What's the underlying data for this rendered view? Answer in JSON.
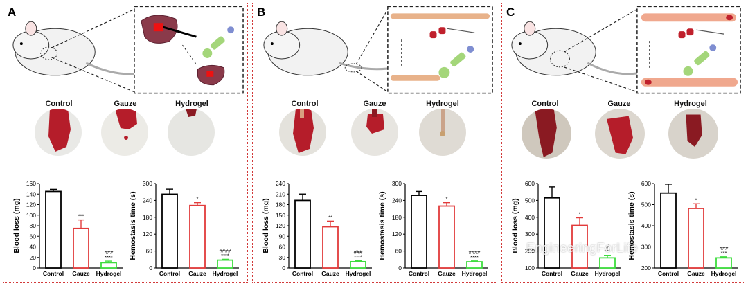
{
  "panels": [
    {
      "letter": "A",
      "photo_labels": [
        "Control",
        "Gauze",
        "Hydrogel"
      ],
      "charts": [
        {
          "ylabel": "Blood loss (mg)",
          "categories": [
            "Control",
            "Gauze",
            "Hydrogel"
          ],
          "values": [
            145,
            75,
            10
          ],
          "errors": [
            4,
            16,
            3
          ],
          "ylim": [
            0,
            160
          ],
          "ticks": [
            0,
            20,
            40,
            60,
            80,
            100,
            120,
            140,
            160
          ],
          "annotations": [
            "",
            "***",
            "###\n****"
          ]
        },
        {
          "ylabel": "Hemostasis time (s)",
          "categories": [
            "Control",
            "Gauze",
            "Hydrogel"
          ],
          "values": [
            262,
            222,
            28
          ],
          "errors": [
            18,
            10,
            3
          ],
          "ylim": [
            0,
            300
          ],
          "ticks": [
            0,
            60,
            120,
            180,
            240,
            300
          ],
          "annotations": [
            "",
            "*",
            "####\n****"
          ]
        }
      ]
    },
    {
      "letter": "B",
      "photo_labels": [
        "Control",
        "Gauze",
        "Hydrogel"
      ],
      "charts": [
        {
          "ylabel": "Blood loss (mg)",
          "categories": [
            "Control",
            "Gauze",
            "Hydrogel"
          ],
          "values": [
            192,
            117,
            18
          ],
          "errors": [
            18,
            16,
            3
          ],
          "ylim": [
            0,
            240
          ],
          "ticks": [
            0,
            30,
            60,
            90,
            120,
            150,
            180,
            210,
            240
          ],
          "annotations": [
            "",
            "**",
            "###\n****"
          ]
        },
        {
          "ylabel": "Hemostasis time (s)",
          "categories": [
            "Control",
            "Gauze",
            "Hydrogel"
          ],
          "values": [
            258,
            220,
            22
          ],
          "errors": [
            14,
            12,
            3
          ],
          "ylim": [
            0,
            300
          ],
          "ticks": [
            0,
            60,
            120,
            180,
            240,
            300
          ],
          "annotations": [
            "",
            "*",
            "####\n****"
          ]
        }
      ]
    },
    {
      "letter": "C",
      "photo_labels": [
        "Control",
        "Gauze",
        "Hydrogel"
      ],
      "charts": [
        {
          "ylabel": "Blood loss (mg)",
          "categories": [
            "Control",
            "Gauze",
            "Hydrogel"
          ],
          "values": [
            515,
            352,
            160
          ],
          "errors": [
            65,
            45,
            15
          ],
          "ylim": [
            100,
            600
          ],
          "ticks": [
            100,
            200,
            300,
            400,
            500,
            600
          ],
          "annotations": [
            "",
            "*",
            "#\n***"
          ]
        },
        {
          "ylabel": "Hemostasis time (s)",
          "categories": [
            "Control",
            "Gauze",
            "Hydrogel"
          ],
          "values": [
            555,
            482,
            248
          ],
          "errors": [
            42,
            22,
            5
          ],
          "ylim": [
            200,
            600
          ],
          "ticks": [
            200,
            300,
            400,
            500,
            600
          ],
          "annotations": [
            "",
            "*",
            "###\n***"
          ]
        }
      ]
    }
  ],
  "watermark": "EngineeringForLife",
  "colors": {
    "control": "#000000",
    "gauze": "#e23b3b",
    "hydrogel": "#3ddc3d",
    "frame": "#d23a3a",
    "blood": "#b51d2a"
  }
}
